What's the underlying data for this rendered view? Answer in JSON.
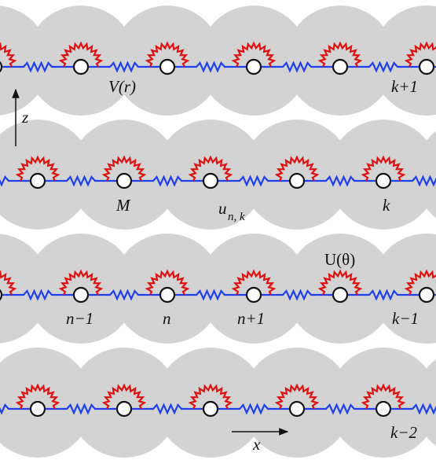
{
  "labels": {
    "potential_v": "V(r)",
    "row_k_plus_1": "k+1",
    "axis_z": "z",
    "mass": "M",
    "displacement_u": "u",
    "displacement_sub": "n, k",
    "row_k": "k",
    "potential_u": "U(θ)",
    "col_n_minus_1": "n−1",
    "col_n": "n",
    "col_n_plus_1": "n+1",
    "row_k_minus_1": "k−1",
    "row_k_minus_2": "k−2",
    "axis_x": "x"
  }
}
